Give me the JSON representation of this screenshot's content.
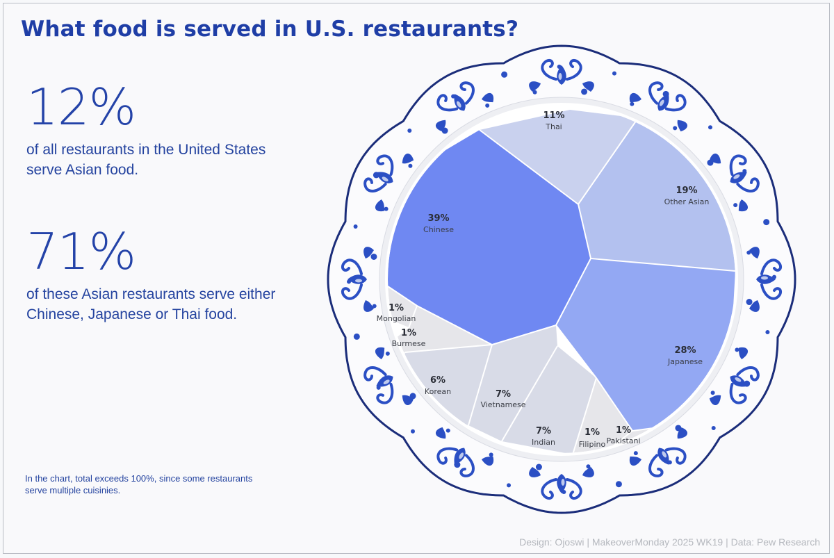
{
  "title": "What food is served in U.S. restaurants?",
  "stat1": {
    "value": "12%",
    "text": "of all restaurants in the United States serve Asian food."
  },
  "stat2": {
    "value": "71%",
    "text": "of these Asian restaurants serve either Chinese, Japanese or Thai food."
  },
  "footnote": "In the chart, total exceeds 100%, since some restaurants serve multiple cuisinies.",
  "credits": "Design: Ojoswi | MakeoverMonday 2025 WK19 | Data: Pew Research",
  "colors": {
    "accent": "#1f3ea6",
    "ornament": "#2b4fc4",
    "chinese": "#6f88f2",
    "japanese": "#93a8f3",
    "other_asian": "#b3c1ef",
    "thai": "#c9d1ee",
    "light_segment": "#d8dbe7",
    "tiny_segment": "#e6e6ea"
  },
  "chart_data": {
    "type": "voronoi treemap",
    "series": [
      {
        "name": "Chinese",
        "value": 39,
        "label": "39%"
      },
      {
        "name": "Japanese",
        "value": 28,
        "label": "28%"
      },
      {
        "name": "Other Asian",
        "value": 19,
        "label": "19%"
      },
      {
        "name": "Thai",
        "value": 11,
        "label": "11%"
      },
      {
        "name": "Vietnamese",
        "value": 7,
        "label": "7%"
      },
      {
        "name": "Indian",
        "value": 7,
        "label": "7%"
      },
      {
        "name": "Korean",
        "value": 6,
        "label": "6%"
      },
      {
        "name": "Mongolian",
        "value": 1,
        "label": "1%"
      },
      {
        "name": "Burmese",
        "value": 1,
        "label": "1%"
      },
      {
        "name": "Filipino",
        "value": 1,
        "label": "1%"
      },
      {
        "name": "Pakistani",
        "value": 1,
        "label": "1%"
      }
    ]
  }
}
